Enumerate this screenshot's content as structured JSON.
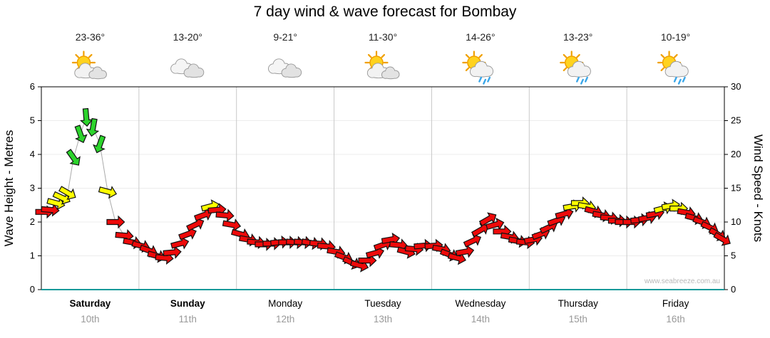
{
  "title": "7 day wind & wave forecast for Bombay",
  "watermark": "www.seabreeze.com.au",
  "y_left": {
    "title": "Wave Height - Metres",
    "ticks": [
      0,
      1,
      2,
      3,
      4,
      5,
      6
    ],
    "range": [
      0,
      6
    ]
  },
  "y_right": {
    "title": "Wind Speed - Knots",
    "ticks": [
      0,
      5,
      10,
      15,
      20,
      25,
      30
    ],
    "range": [
      0,
      30
    ]
  },
  "days": [
    {
      "name": "Saturday",
      "date": "10th",
      "temp": "23-36°",
      "icon": "sun-cloud",
      "bold": true
    },
    {
      "name": "Sunday",
      "date": "11th",
      "temp": "13-20°",
      "icon": "cloud",
      "bold": true
    },
    {
      "name": "Monday",
      "date": "12th",
      "temp": "9-21°",
      "icon": "cloud",
      "bold": false
    },
    {
      "name": "Tuesday",
      "date": "13th",
      "temp": "11-30°",
      "icon": "sun-cloud",
      "bold": false
    },
    {
      "name": "Wednesday",
      "date": "14th",
      "temp": "14-26°",
      "icon": "sun-cloud-rain",
      "bold": false
    },
    {
      "name": "Thursday",
      "date": "15th",
      "temp": "13-23°",
      "icon": "sun-cloud-rain",
      "bold": false
    },
    {
      "name": "Friday",
      "date": "16th",
      "temp": "10-19°",
      "icon": "sun-cloud-rain",
      "bold": false
    }
  ],
  "colors": {
    "red": "#ee0a0a",
    "yellow": "#ffff00",
    "green": "#2cd42c",
    "line": "#aaaaaa",
    "baseline": "#119999",
    "grid_day": "#c9c9c9",
    "grid_h": "#ececec",
    "date_text": "#999999",
    "watermark_text": "#b9b9b9"
  },
  "chart_data": {
    "type": "line",
    "title": "7 day wind & wave forecast for Bombay",
    "x_axis": "Days, Saturday 10th through Friday 16th (x = day fraction 0..7)",
    "ylabel_left": "Wave Height - Metres",
    "ylim_left": [
      0,
      6
    ],
    "ylabel_right": "Wind Speed - Knots",
    "ylim_right": [
      0,
      30
    ],
    "grid": "vertical lines at day boundaries",
    "legend": "none (arrow colour encodes wind strength band, arrow angle encodes wind direction)",
    "colour_bands": {
      "red": "light wind (under ~12 kn)",
      "yellow": "moderate (~12-17 kn)",
      "green": "fresh (~17+ kn)"
    },
    "series_name": "Wind speed (knots) with direction arrows",
    "point_format": [
      "day_fraction_0_to_7",
      "wind_speed_knots",
      "arrow_rotation_deg_cw_from_east",
      "colour_band"
    ],
    "points": [
      [
        0.03,
        11.5,
        0,
        "red"
      ],
      [
        0.09,
        11.8,
        5,
        "red"
      ],
      [
        0.15,
        12.8,
        15,
        "yellow"
      ],
      [
        0.21,
        13.6,
        25,
        "yellow"
      ],
      [
        0.27,
        14.3,
        30,
        "yellow"
      ],
      [
        0.33,
        19.5,
        55,
        "green"
      ],
      [
        0.4,
        23.0,
        70,
        "green"
      ],
      [
        0.46,
        25.5,
        85,
        "green"
      ],
      [
        0.53,
        24.0,
        100,
        "green"
      ],
      [
        0.6,
        21.5,
        110,
        "green"
      ],
      [
        0.68,
        14.5,
        15,
        "yellow"
      ],
      [
        0.76,
        10.0,
        0,
        "red"
      ],
      [
        0.85,
        8.0,
        5,
        "red"
      ],
      [
        0.93,
        7.0,
        10,
        "red"
      ],
      [
        1.02,
        6.5,
        15,
        "red"
      ],
      [
        1.1,
        5.8,
        20,
        "red"
      ],
      [
        1.18,
        5.0,
        15,
        "red"
      ],
      [
        1.26,
        4.7,
        5,
        "red"
      ],
      [
        1.34,
        5.5,
        -5,
        "red"
      ],
      [
        1.42,
        6.8,
        -15,
        "red"
      ],
      [
        1.5,
        8.2,
        -20,
        "red"
      ],
      [
        1.58,
        9.6,
        -25,
        "red"
      ],
      [
        1.66,
        11.0,
        -20,
        "red"
      ],
      [
        1.73,
        12.3,
        -15,
        "yellow"
      ],
      [
        1.8,
        11.8,
        -5,
        "red"
      ],
      [
        1.88,
        11.0,
        5,
        "red"
      ],
      [
        1.95,
        9.6,
        10,
        "red"
      ],
      [
        2.04,
        8.2,
        15,
        "red"
      ],
      [
        2.12,
        7.4,
        10,
        "red"
      ],
      [
        2.2,
        7.0,
        5,
        "red"
      ],
      [
        2.28,
        6.7,
        0,
        "red"
      ],
      [
        2.36,
        6.8,
        0,
        "red"
      ],
      [
        2.44,
        7.0,
        -5,
        "red"
      ],
      [
        2.52,
        7.0,
        0,
        "red"
      ],
      [
        2.6,
        7.0,
        5,
        "red"
      ],
      [
        2.68,
        7.0,
        5,
        "red"
      ],
      [
        2.76,
        6.9,
        10,
        "red"
      ],
      [
        2.84,
        6.8,
        5,
        "red"
      ],
      [
        2.92,
        6.4,
        5,
        "red"
      ],
      [
        3.02,
        5.6,
        10,
        "red"
      ],
      [
        3.1,
        4.8,
        20,
        "red"
      ],
      [
        3.18,
        4.0,
        25,
        "red"
      ],
      [
        3.26,
        3.6,
        15,
        "red"
      ],
      [
        3.34,
        4.3,
        0,
        "red"
      ],
      [
        3.42,
        5.4,
        -15,
        "red"
      ],
      [
        3.5,
        6.6,
        -20,
        "red"
      ],
      [
        3.58,
        7.4,
        -10,
        "red"
      ],
      [
        3.66,
        6.6,
        5,
        "red"
      ],
      [
        3.74,
        5.6,
        15,
        "red"
      ],
      [
        3.82,
        6.0,
        5,
        "red"
      ],
      [
        3.91,
        6.5,
        -5,
        "red"
      ],
      [
        4.02,
        6.5,
        -5,
        "red"
      ],
      [
        4.1,
        6.0,
        10,
        "red"
      ],
      [
        4.18,
        5.2,
        20,
        "red"
      ],
      [
        4.26,
        4.7,
        15,
        "red"
      ],
      [
        4.34,
        5.6,
        -10,
        "red"
      ],
      [
        4.42,
        7.2,
        -25,
        "red"
      ],
      [
        4.5,
        8.8,
        -30,
        "red"
      ],
      [
        4.58,
        10.4,
        -30,
        "red"
      ],
      [
        4.65,
        9.6,
        -15,
        "red"
      ],
      [
        4.72,
        8.6,
        0,
        "red"
      ],
      [
        4.8,
        7.8,
        10,
        "red"
      ],
      [
        4.88,
        7.2,
        10,
        "red"
      ],
      [
        4.96,
        7.0,
        5,
        "red"
      ],
      [
        5.04,
        7.4,
        -10,
        "red"
      ],
      [
        5.12,
        8.2,
        -20,
        "red"
      ],
      [
        5.2,
        9.2,
        -25,
        "red"
      ],
      [
        5.28,
        10.2,
        -20,
        "red"
      ],
      [
        5.36,
        11.2,
        -15,
        "red"
      ],
      [
        5.44,
        12.3,
        -10,
        "yellow"
      ],
      [
        5.52,
        12.8,
        0,
        "yellow"
      ],
      [
        5.59,
        12.3,
        10,
        "yellow"
      ],
      [
        5.66,
        11.6,
        15,
        "red"
      ],
      [
        5.74,
        11.0,
        10,
        "red"
      ],
      [
        5.82,
        10.6,
        5,
        "red"
      ],
      [
        5.9,
        10.2,
        0,
        "red"
      ],
      [
        5.97,
        10.0,
        0,
        "red"
      ],
      [
        6.05,
        10.0,
        0,
        "red"
      ],
      [
        6.13,
        10.3,
        -5,
        "red"
      ],
      [
        6.21,
        10.6,
        -10,
        "red"
      ],
      [
        6.29,
        11.2,
        -10,
        "red"
      ],
      [
        6.37,
        12.0,
        -15,
        "yellow"
      ],
      [
        6.45,
        12.4,
        -10,
        "yellow"
      ],
      [
        6.53,
        12.0,
        0,
        "yellow"
      ],
      [
        6.61,
        11.4,
        10,
        "red"
      ],
      [
        6.69,
        10.6,
        15,
        "red"
      ],
      [
        6.77,
        10.0,
        20,
        "red"
      ],
      [
        6.85,
        9.2,
        25,
        "red"
      ],
      [
        6.93,
        8.2,
        30,
        "red"
      ],
      [
        6.98,
        7.5,
        30,
        "red"
      ]
    ]
  }
}
